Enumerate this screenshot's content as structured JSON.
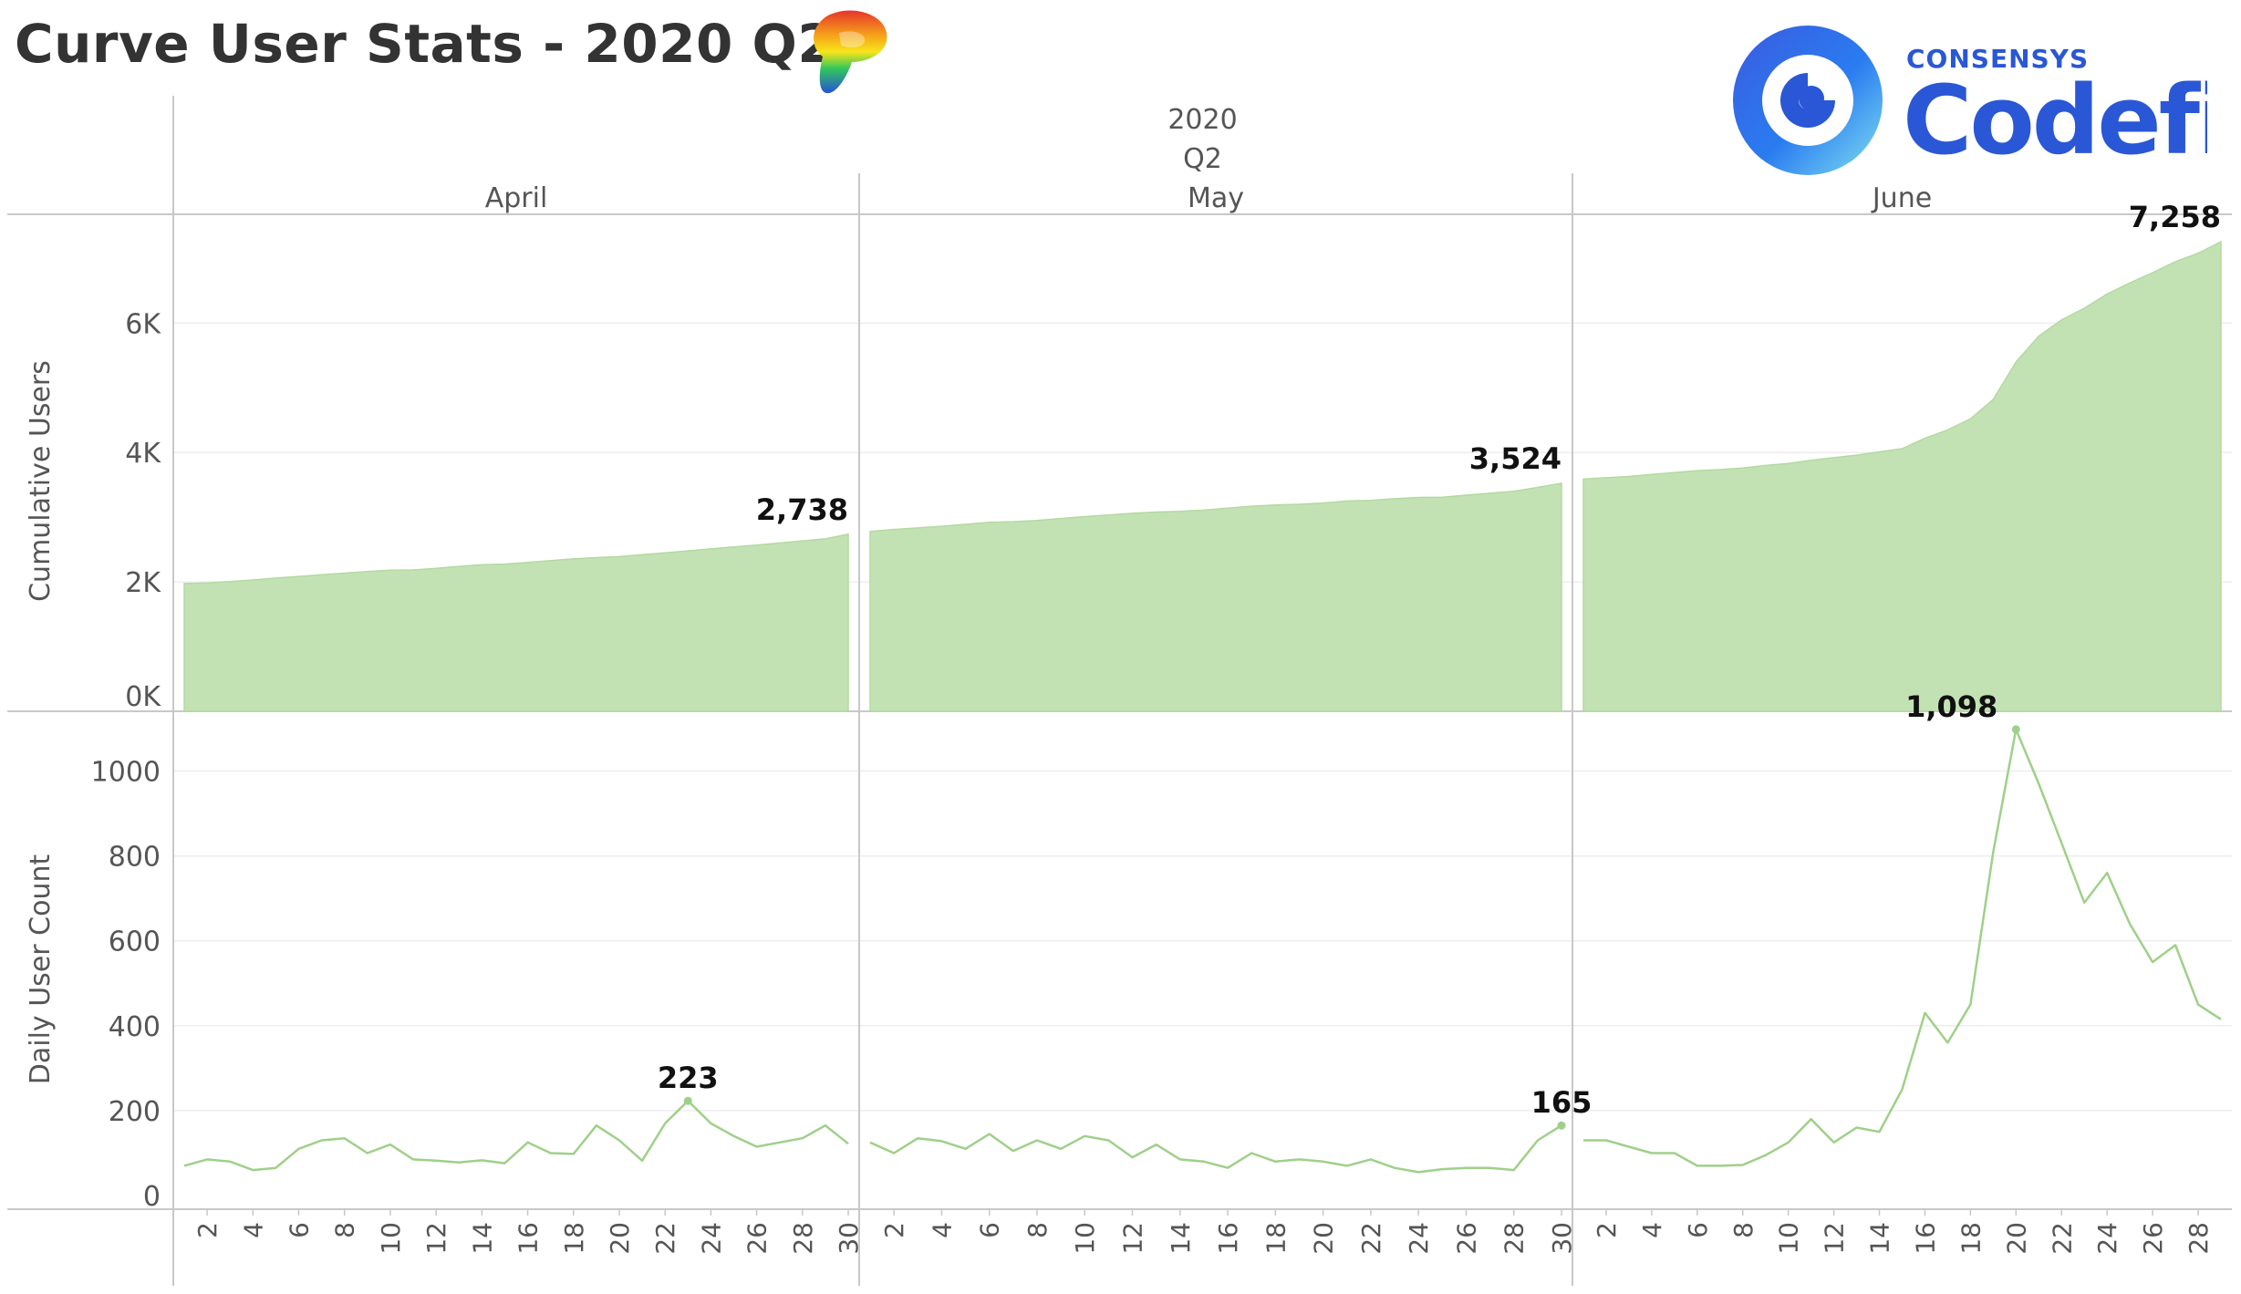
{
  "title": "Curve User Stats - 2020 Q2",
  "logos": {
    "codefi_small": "CONSENSYS",
    "codefi_big": "Codefi"
  },
  "chart_data": {
    "type": "area",
    "column_header": {
      "year": "2020",
      "quarter": "Q2",
      "months": [
        "April",
        "May",
        "June"
      ]
    },
    "x_tick_labels": {
      "April": [
        "2",
        "4",
        "6",
        "8",
        "10",
        "12",
        "14",
        "16",
        "18",
        "20",
        "22",
        "24",
        "26",
        "28",
        "30"
      ],
      "May": [
        "2",
        "4",
        "6",
        "8",
        "10",
        "12",
        "14",
        "16",
        "18",
        "20",
        "22",
        "24",
        "26",
        "28",
        "30"
      ],
      "June": [
        "2",
        "4",
        "6",
        "8",
        "10",
        "12",
        "14",
        "16",
        "18",
        "20",
        "22",
        "24",
        "26",
        "28"
      ]
    },
    "cumulative": {
      "ylabel": "Cumulative Users",
      "ylim": [
        0,
        7400
      ],
      "ticks": [
        0,
        2000,
        4000,
        6000
      ],
      "tick_labels": [
        "0K",
        "2K",
        "4K",
        "6K"
      ],
      "fill_color": "#c3e2b4",
      "series": {
        "April": [
          1975,
          1985,
          2005,
          2030,
          2060,
          2085,
          2110,
          2135,
          2160,
          2180,
          2185,
          2210,
          2240,
          2265,
          2275,
          2300,
          2330,
          2355,
          2375,
          2390,
          2420,
          2450,
          2480,
          2510,
          2540,
          2570,
          2600,
          2635,
          2665,
          2738
        ],
        "May": [
          2780,
          2810,
          2835,
          2860,
          2890,
          2920,
          2930,
          2950,
          2980,
          3010,
          3035,
          3060,
          3080,
          3090,
          3110,
          3140,
          3170,
          3190,
          3200,
          3220,
          3250,
          3260,
          3285,
          3305,
          3310,
          3340,
          3370,
          3400,
          3460,
          3524
        ],
        "June": [
          3590,
          3610,
          3630,
          3660,
          3690,
          3720,
          3735,
          3760,
          3800,
          3830,
          3880,
          3920,
          3960,
          4010,
          4060,
          4220,
          4350,
          4520,
          4820,
          5400,
          5800,
          6050,
          6230,
          6450,
          6620,
          6780,
          6950,
          7080,
          7258
        ]
      },
      "labels": [
        {
          "month": "April",
          "day": 30,
          "text": "2,738"
        },
        {
          "month": "May",
          "day": 30,
          "text": "3,524"
        },
        {
          "month": "June",
          "day": 29,
          "text": "7,258"
        }
      ]
    },
    "daily": {
      "ylabel": "Daily User Count",
      "ylim": [
        0,
        1130
      ],
      "ticks": [
        0,
        200,
        400,
        600,
        800,
        1000
      ],
      "tick_labels": [
        "0",
        "200",
        "400",
        "600",
        "800",
        "1000"
      ],
      "line_color": "#9fd089",
      "series": {
        "April": [
          70,
          85,
          80,
          60,
          65,
          110,
          130,
          135,
          100,
          120,
          85,
          82,
          78,
          83,
          76,
          125,
          100,
          98,
          165,
          130,
          82,
          170,
          223,
          170,
          140,
          115,
          125,
          135,
          165,
          122
        ],
        "May": [
          125,
          100,
          135,
          128,
          110,
          145,
          105,
          130,
          110,
          140,
          130,
          90,
          120,
          85,
          80,
          65,
          100,
          80,
          85,
          80,
          70,
          85,
          65,
          55,
          62,
          65,
          65,
          60,
          130,
          165
        ],
        "June": [
          130,
          130,
          115,
          100,
          100,
          70,
          70,
          72,
          95,
          125,
          180,
          125,
          160,
          150,
          250,
          430,
          360,
          450,
          810,
          1098,
          970,
          830,
          690,
          760,
          640,
          550,
          590,
          450,
          415
        ]
      },
      "labels": [
        {
          "month": "April",
          "day": 23,
          "text": "223"
        },
        {
          "month": "May",
          "day": 30,
          "text": "165"
        },
        {
          "month": "June",
          "day": 20,
          "text": "1,098"
        }
      ]
    }
  }
}
